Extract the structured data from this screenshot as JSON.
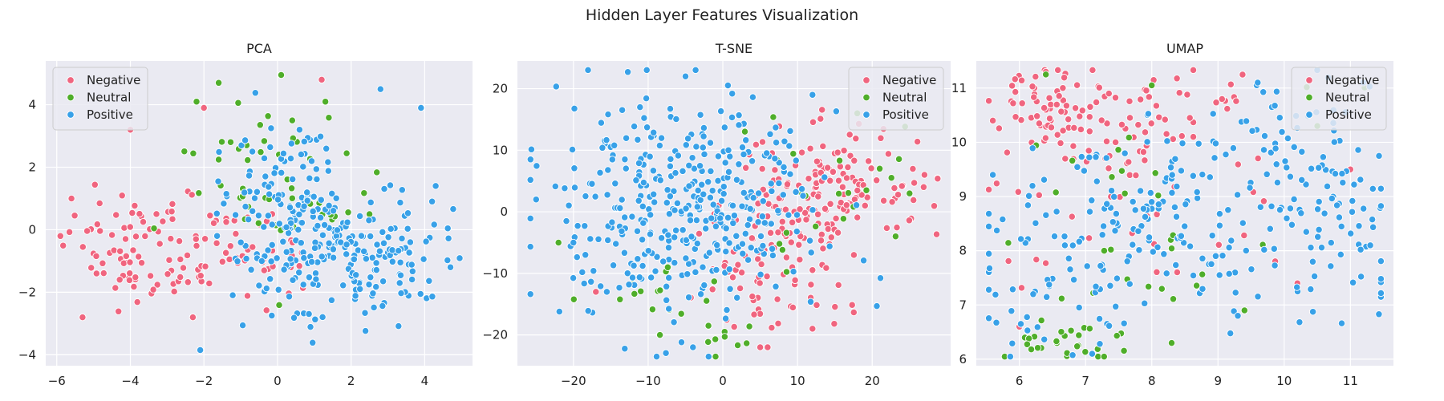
{
  "figure": {
    "title": "Hidden Layer Features Visualization"
  },
  "colors": {
    "Negative": "#f0657f",
    "Neutral": "#4fae2a",
    "Positive": "#38a1e8",
    "panel_bg": "#eaeaf2",
    "grid": "#ffffff"
  },
  "chart_data": [
    {
      "type": "scatter",
      "title": "PCA",
      "xlabel": "",
      "ylabel": "",
      "xlim": [
        -6.3,
        5.3
      ],
      "ylim": [
        -4.35,
        5.4
      ],
      "xticks": [
        -6,
        -4,
        -2,
        0,
        2,
        4
      ],
      "yticks": [
        -4,
        -2,
        0,
        2,
        4
      ],
      "grid": true,
      "legend": "top-left",
      "series": [
        {
          "name": "Negative",
          "seed": 11,
          "n": 130,
          "clusters": [
            [
              -3.8,
              -0.6,
              0.9,
              0.9,
              0.5
            ],
            [
              -1.5,
              -1.0,
              0.8,
              0.8,
              0.3
            ],
            [
              -0.3,
              -0.5,
              0.6,
              0.7,
              0.2
            ]
          ],
          "points": [
            [
              1.2,
              4.8
            ],
            [
              -2.0,
              3.9
            ],
            [
              -4.0,
              3.2
            ],
            [
              -5.3,
              -2.8
            ],
            [
              -5.9,
              -0.2
            ],
            [
              -5.6,
              1.0
            ],
            [
              -2.3,
              -2.8
            ]
          ]
        },
        {
          "name": "Neutral",
          "seed": 22,
          "n": 50,
          "clusters": [
            [
              -0.7,
              1.6,
              0.9,
              1.2,
              0.6
            ],
            [
              1.3,
              1.5,
              0.7,
              1.0,
              0.4
            ]
          ],
          "points": [
            [
              0.1,
              4.95
            ],
            [
              -2.2,
              4.1
            ],
            [
              1.3,
              4.1
            ],
            [
              -1.6,
              4.7
            ],
            [
              0.4,
              3.5
            ],
            [
              2.5,
              0.5
            ]
          ]
        },
        {
          "name": "Positive",
          "seed": 33,
          "n": 300,
          "clusters": [
            [
              1.1,
              -0.6,
              1.4,
              1.1,
              0.55
            ],
            [
              2.9,
              -0.8,
              0.9,
              0.9,
              0.25
            ],
            [
              0.2,
              1.2,
              0.7,
              1.0,
              0.2
            ]
          ],
          "points": [
            [
              2.8,
              4.5
            ],
            [
              3.9,
              3.9
            ],
            [
              -2.1,
              -3.85
            ],
            [
              0.6,
              3.2
            ],
            [
              4.7,
              -1.2
            ],
            [
              4.3,
              1.4
            ]
          ]
        }
      ]
    },
    {
      "type": "scatter",
      "title": "T-SNE",
      "xlabel": "",
      "ylabel": "",
      "xlim": [
        -27.5,
        30.5
      ],
      "ylim": [
        -25.0,
        24.5
      ],
      "xticks": [
        -20,
        -10,
        0,
        10,
        20
      ],
      "yticks": [
        -20,
        -10,
        0,
        10,
        20
      ],
      "grid": true,
      "legend": "top-right",
      "series": [
        {
          "name": "Negative",
          "seed": 44,
          "n": 230,
          "clusters": [
            [
              15,
              4,
              6,
              5,
              0.55
            ],
            [
              5,
              -6,
              5,
              6,
              0.35
            ],
            [
              12,
              -12,
              4,
              3,
              0.1
            ]
          ],
          "points": [
            [
              6,
              -22
            ],
            [
              12,
              -19
            ],
            [
              27,
              6
            ],
            [
              -17,
              -13
            ],
            [
              5,
              -22
            ]
          ]
        },
        {
          "name": "Neutral",
          "seed": 55,
          "n": 45,
          "clusters": [
            [
              2,
              -21,
              3,
              1.5,
              0.25
            ],
            [
              -8,
              -15,
              5,
              3,
              0.3
            ],
            [
              14,
              3,
              8,
              6,
              0.45
            ]
          ],
          "points": [
            [
              -22,
              -5
            ],
            [
              25,
              3
            ],
            [
              21,
              7
            ],
            [
              18,
              16
            ]
          ]
        },
        {
          "name": "Positive",
          "seed": 66,
          "n": 380,
          "clusters": [
            [
              -8,
              0,
              8,
              9,
              0.75
            ],
            [
              3,
              2,
              6,
              7,
              0.25
            ]
          ],
          "points": [
            [
              -5,
              22
            ],
            [
              -25,
              2
            ],
            [
              12,
              19
            ],
            [
              -4,
              -22
            ],
            [
              -20,
              -5
            ]
          ]
        }
      ]
    },
    {
      "type": "scatter",
      "title": "UMAP",
      "xlabel": "",
      "ylabel": "",
      "xlim": [
        5.35,
        11.65
      ],
      "ylim": [
        5.88,
        11.5
      ],
      "xticks": [
        6,
        7,
        8,
        9,
        10,
        11
      ],
      "yticks": [
        6,
        7,
        8,
        9,
        10,
        11
      ],
      "grid": true,
      "legend": "top-right",
      "series": [
        {
          "name": "Negative",
          "seed": 77,
          "n": 150,
          "clusters": [
            [
              6.3,
              10.7,
              0.35,
              0.35,
              0.35
            ],
            [
              8.0,
              10.2,
              1.0,
              0.6,
              0.4
            ],
            [
              7.5,
              8.6,
              1.2,
              1.0,
              0.25
            ]
          ],
          "points": [
            [
              6.4,
              11.3
            ],
            [
              5.6,
              10.4
            ],
            [
              10.2,
              7.4
            ],
            [
              6.0,
              6.6
            ],
            [
              11.0,
              9.5
            ]
          ]
        },
        {
          "name": "Neutral",
          "seed": 88,
          "n": 60,
          "clusters": [
            [
              6.7,
              6.3,
              0.5,
              0.25,
              0.35
            ],
            [
              7.3,
              7.9,
              1.2,
              1.0,
              0.45
            ],
            [
              9.0,
              9.8,
              1.3,
              0.8,
              0.2
            ]
          ],
          "points": [
            [
              6.4,
              11.25
            ],
            [
              8.0,
              11.05
            ],
            [
              8.3,
              6.3
            ],
            [
              9.4,
              6.9
            ],
            [
              10.5,
              10.3
            ]
          ]
        },
        {
          "name": "Positive",
          "seed": 99,
          "n": 300,
          "clusters": [
            [
              9.2,
              8.7,
              1.4,
              1.1,
              0.65
            ],
            [
              6.6,
              7.8,
              0.9,
              0.9,
              0.2
            ],
            [
              10.6,
              9.2,
              0.6,
              0.9,
              0.15
            ]
          ],
          "points": [
            [
              9.6,
              11.1
            ],
            [
              5.6,
              9.4
            ],
            [
              7.1,
              6.1
            ],
            [
              11.3,
              8.1
            ],
            [
              9.3,
              6.8
            ]
          ]
        }
      ]
    }
  ]
}
